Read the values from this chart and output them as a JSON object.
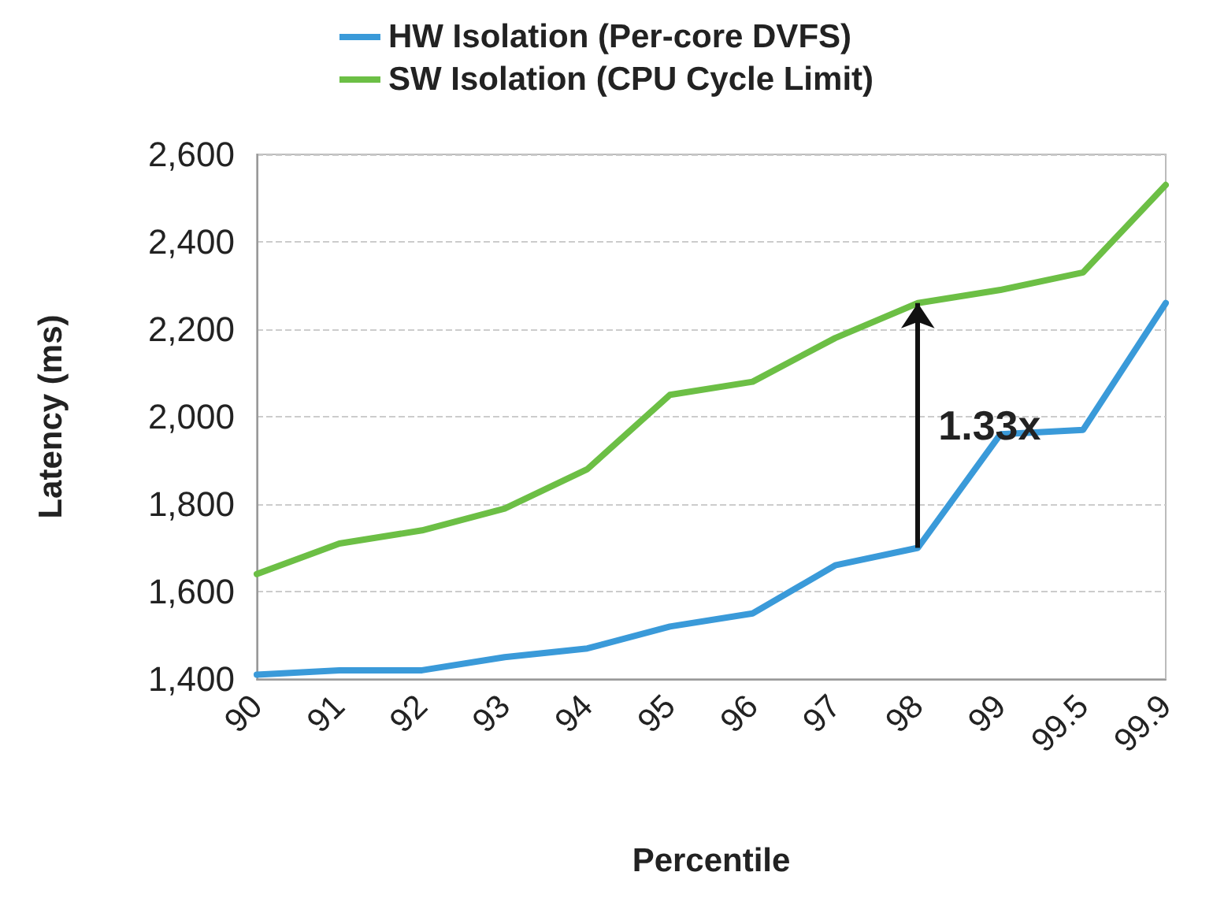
{
  "chart_data": {
    "type": "line",
    "xlabel": "Percentile",
    "ylabel": "Latency (ms)",
    "categories": [
      "90",
      "91",
      "92",
      "93",
      "94",
      "95",
      "96",
      "97",
      "98",
      "99",
      "99.5",
      "99.9"
    ],
    "series": [
      {
        "name": "HW Isolation (Per-core DVFS)",
        "color": "#3a9ad9",
        "values": [
          1410,
          1420,
          1420,
          1450,
          1470,
          1520,
          1550,
          1660,
          1700,
          1960,
          1970,
          2260
        ]
      },
      {
        "name": "SW Isolation (CPU Cycle Limit)",
        "color": "#6cbf45",
        "values": [
          1640,
          1710,
          1740,
          1790,
          1880,
          2050,
          2080,
          2180,
          2260,
          2290,
          2330,
          2530
        ]
      }
    ],
    "ylim": [
      1400,
      2600
    ],
    "yticks": [
      {
        "value": 1400,
        "label": "1,400"
      },
      {
        "value": 1600,
        "label": "1,600"
      },
      {
        "value": 1800,
        "label": "1,800"
      },
      {
        "value": 2000,
        "label": "2,000"
      },
      {
        "value": 2200,
        "label": "2,200"
      },
      {
        "value": 2400,
        "label": "2,400"
      },
      {
        "value": 2600,
        "label": "2,600"
      }
    ],
    "annotations": [
      {
        "text": "1.33x",
        "x": "98",
        "y": 1700
      }
    ],
    "grid": "y",
    "legend": "top",
    "marker": "none",
    "line_style": "solid"
  }
}
